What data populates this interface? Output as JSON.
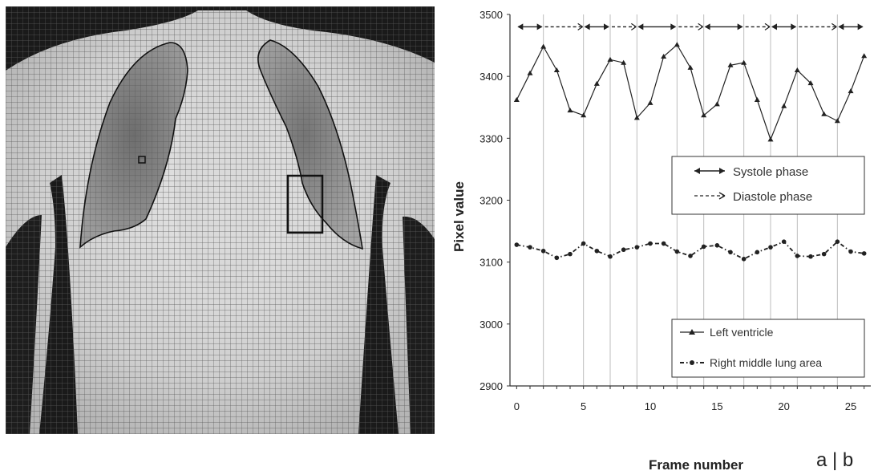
{
  "figure": {
    "caption": "a | b"
  },
  "xray": {
    "description_icon": "chest-xray-icon",
    "colors": {
      "grid": "#5a5a5a",
      "outline": "#111111"
    }
  },
  "chart_data": {
    "type": "line",
    "xlabel": "Frame number",
    "ylabel": "Pixel value",
    "xlim": [
      -0.5,
      26.5
    ],
    "ylim": [
      2900,
      3500
    ],
    "xticks": [
      0,
      5,
      10,
      15,
      20,
      25
    ],
    "yticks": [
      2900,
      3000,
      3100,
      3200,
      3300,
      3400,
      3500
    ],
    "vlines": [
      2,
      5,
      7,
      9,
      12,
      14,
      17,
      19,
      21,
      24
    ],
    "series": [
      {
        "name": "Left ventricle",
        "marker": "triangle",
        "linestyle": "solid",
        "x": [
          0,
          1,
          2,
          3,
          4,
          5,
          6,
          7,
          8,
          9,
          10,
          11,
          12,
          13,
          14,
          15,
          16,
          17,
          18,
          19,
          20,
          21,
          22,
          23,
          24,
          25,
          26
        ],
        "values": [
          3362,
          3405,
          3448,
          3410,
          3345,
          3337,
          3388,
          3427,
          3422,
          3333,
          3357,
          3432,
          3451,
          3414,
          3337,
          3355,
          3418,
          3422,
          3362,
          3298,
          3352,
          3410,
          3389,
          3339,
          3328,
          3376,
          3433
        ]
      },
      {
        "name": "Right middle lung area",
        "marker": "circle",
        "linestyle": "dash-dot",
        "x": [
          0,
          1,
          2,
          3,
          4,
          5,
          6,
          7,
          8,
          9,
          10,
          11,
          12,
          13,
          14,
          15,
          16,
          17,
          18,
          19,
          20,
          21,
          22,
          23,
          24,
          25,
          26
        ],
        "values": [
          3128,
          3124,
          3118,
          3107,
          3113,
          3130,
          3118,
          3109,
          3120,
          3124,
          3130,
          3130,
          3117,
          3110,
          3125,
          3127,
          3116,
          3105,
          3116,
          3124,
          3133,
          3110,
          3109,
          3113,
          3133,
          3117,
          3114
        ]
      }
    ],
    "phases": [
      {
        "name": "Systole phase",
        "linestyle": "solid",
        "segments": [
          [
            0,
            2
          ],
          [
            5,
            7
          ],
          [
            9,
            12
          ],
          [
            14,
            17
          ],
          [
            19,
            21
          ],
          [
            24,
            26
          ]
        ]
      },
      {
        "name": "Diastole phase",
        "linestyle": "dashed",
        "segments": [
          [
            2,
            5
          ],
          [
            7,
            9
          ],
          [
            12,
            14
          ],
          [
            17,
            19
          ],
          [
            21,
            24
          ]
        ]
      }
    ],
    "phase_bar_y": 3480,
    "legend_phase": {
      "placement": "middle-right",
      "entries": [
        "Systole phase",
        "Diastole phase"
      ]
    },
    "legend_series": {
      "placement": "lower-right",
      "entries": [
        "Left ventricle",
        "Right middle lung area"
      ]
    },
    "colors": {
      "line": "#222222",
      "vline": "#bdbdbd",
      "axis": "#333333"
    }
  }
}
